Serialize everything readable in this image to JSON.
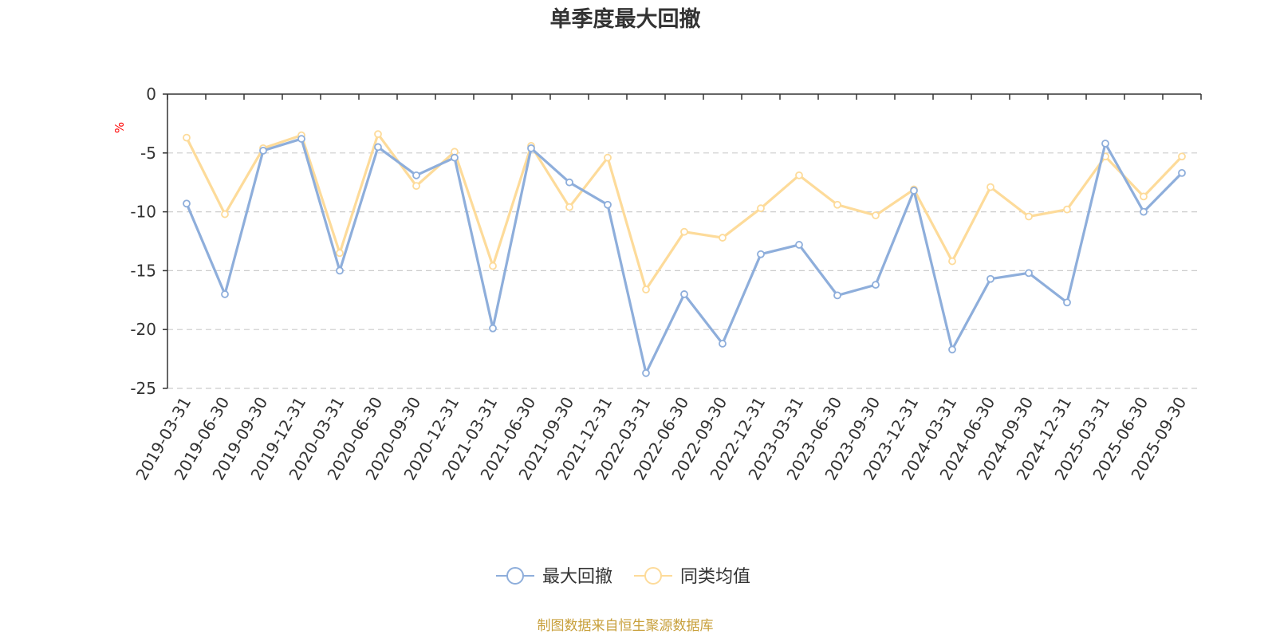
{
  "chart_data": {
    "type": "line",
    "title": "单季度最大回撤",
    "ylabel": "%",
    "ylim": [
      -25,
      0
    ],
    "yticks": [
      0,
      -5,
      -10,
      -15,
      -20,
      -25
    ],
    "grid": true,
    "legend_position": "bottom",
    "categories": [
      "2019-03-31",
      "2019-06-30",
      "2019-09-30",
      "2019-12-31",
      "2020-03-31",
      "2020-06-30",
      "2020-09-30",
      "2020-12-31",
      "2021-03-31",
      "2021-06-30",
      "2021-09-30",
      "2021-12-31",
      "2022-03-31",
      "2022-06-30",
      "2022-09-30",
      "2022-12-31",
      "2023-03-31",
      "2023-06-30",
      "2023-09-30",
      "2023-12-31",
      "2024-03-31",
      "2024-06-30",
      "2024-09-30",
      "2024-12-31",
      "2025-03-31",
      "2025-06-30",
      "2025-09-30"
    ],
    "series": [
      {
        "name": "最大回撤",
        "color": "#8eaedb",
        "values": [
          -9.3,
          -17.0,
          -4.8,
          -3.8,
          -15.0,
          -4.5,
          -6.9,
          -5.4,
          -19.9,
          -4.6,
          -7.5,
          -9.4,
          -23.7,
          -17.0,
          -21.2,
          -13.6,
          -12.8,
          -17.1,
          -16.2,
          -8.2,
          -21.7,
          -15.7,
          -15.2,
          -17.7,
          -4.2,
          -10.0,
          -6.7
        ]
      },
      {
        "name": "同类均值",
        "color": "#fddb9a",
        "values": [
          -3.7,
          -10.2,
          -4.6,
          -3.5,
          -13.5,
          -3.4,
          -7.8,
          -4.9,
          -14.6,
          -4.4,
          -9.6,
          -5.4,
          -16.6,
          -11.7,
          -12.2,
          -9.7,
          -6.9,
          -9.4,
          -10.3,
          -8.1,
          -14.2,
          -7.9,
          -10.4,
          -9.8,
          -5.3,
          -8.7,
          -5.3
        ]
      }
    ]
  },
  "footer": {
    "source": "制图数据来自恒生聚源数据库",
    "source_color": "#c8a03c"
  },
  "colors": {
    "axis": "#333333",
    "grid": "#cccccc",
    "unit": "#ff0000"
  }
}
